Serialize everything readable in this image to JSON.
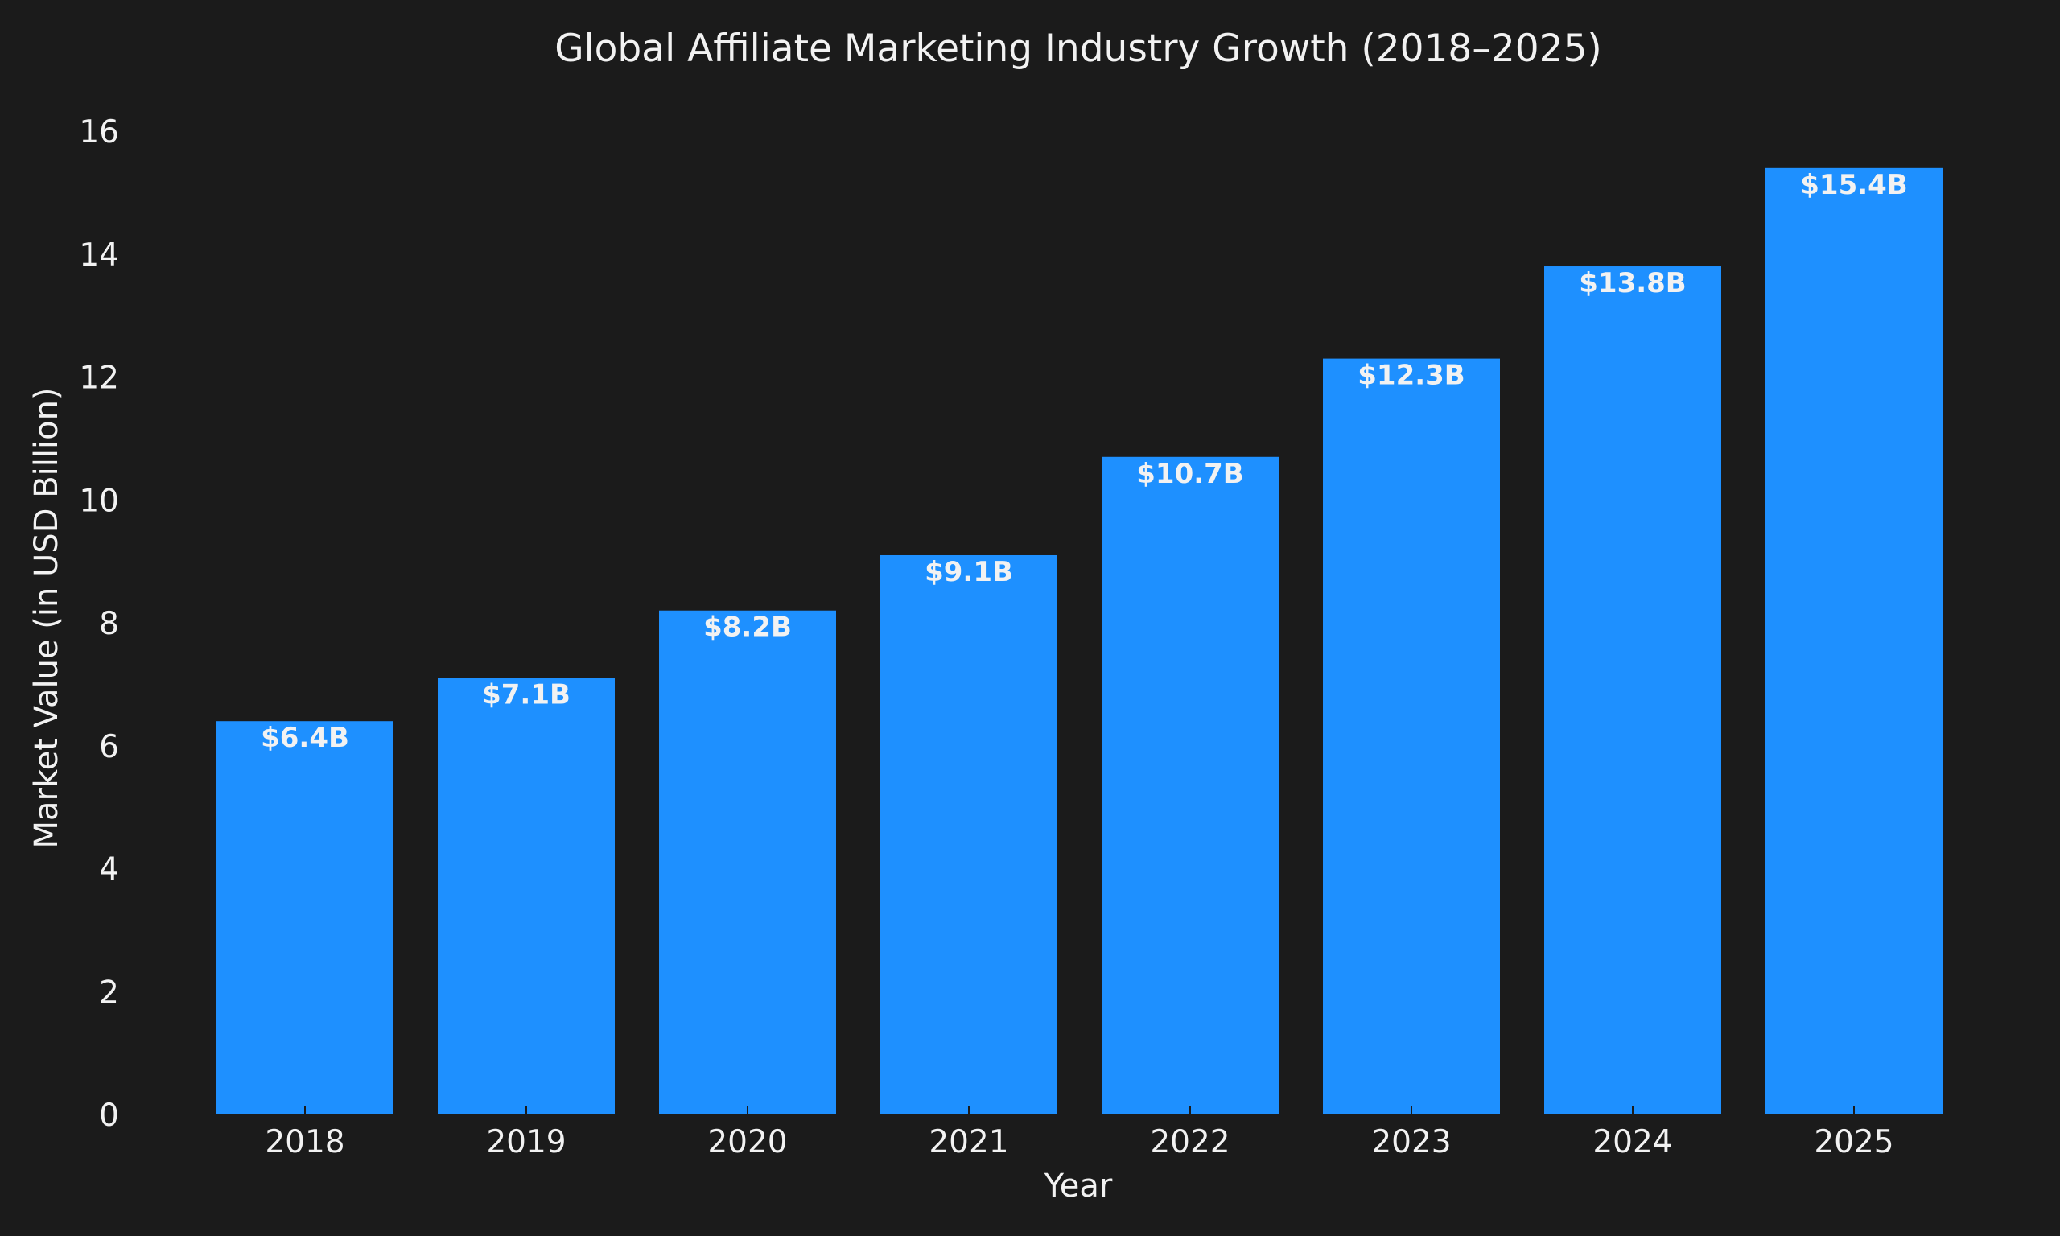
{
  "chart_data": {
    "type": "bar",
    "title": "Global Affiliate Marketing Industry Growth (2018–2025)",
    "xlabel": "Year",
    "ylabel": "Market Value (in USD Billion)",
    "categories": [
      "2018",
      "2019",
      "2020",
      "2021",
      "2022",
      "2023",
      "2024",
      "2025"
    ],
    "values": [
      6.4,
      7.1,
      8.2,
      9.1,
      10.7,
      12.3,
      13.8,
      15.4
    ],
    "data_labels": [
      "$6.4B",
      "$7.1B",
      "$8.2B",
      "$9.1B",
      "$10.7B",
      "$12.3B",
      "$13.8B",
      "$15.4B"
    ],
    "ylim": [
      0,
      16
    ],
    "yticks": [
      0,
      2,
      4,
      6,
      8,
      10,
      12,
      14,
      16
    ],
    "grid": false,
    "legend": "none",
    "colors": {
      "bar": "#1e90ff",
      "background": "#1b1b1b",
      "text": "#f2f2f2"
    }
  }
}
